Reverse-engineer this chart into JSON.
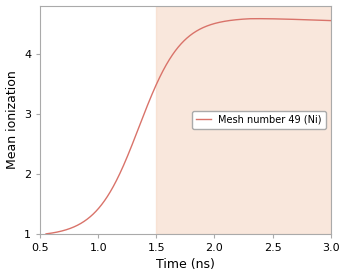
{
  "title": "",
  "xlabel": "Time (ns)",
  "ylabel": "Mean ionization",
  "xlim": [
    0.5,
    3.0
  ],
  "ylim": [
    1.0,
    4.8
  ],
  "xticks": [
    0.5,
    1.0,
    1.5,
    2.0,
    2.5,
    3.0
  ],
  "yticks": [
    1,
    2,
    3,
    4
  ],
  "shade_start": 1.5,
  "shade_color": "#f5d5c0",
  "shade_alpha": 0.55,
  "line_color": "#d9736a",
  "legend_label": "Mesh number 49 (Ni)",
  "bg_color": "#ffffff",
  "curve_x_start": 0.55,
  "curve_x_end": 3.0,
  "curve_y_start": 1.0,
  "curve_plateau": 4.6,
  "growth_rate": 5.5,
  "inflection": 1.35
}
